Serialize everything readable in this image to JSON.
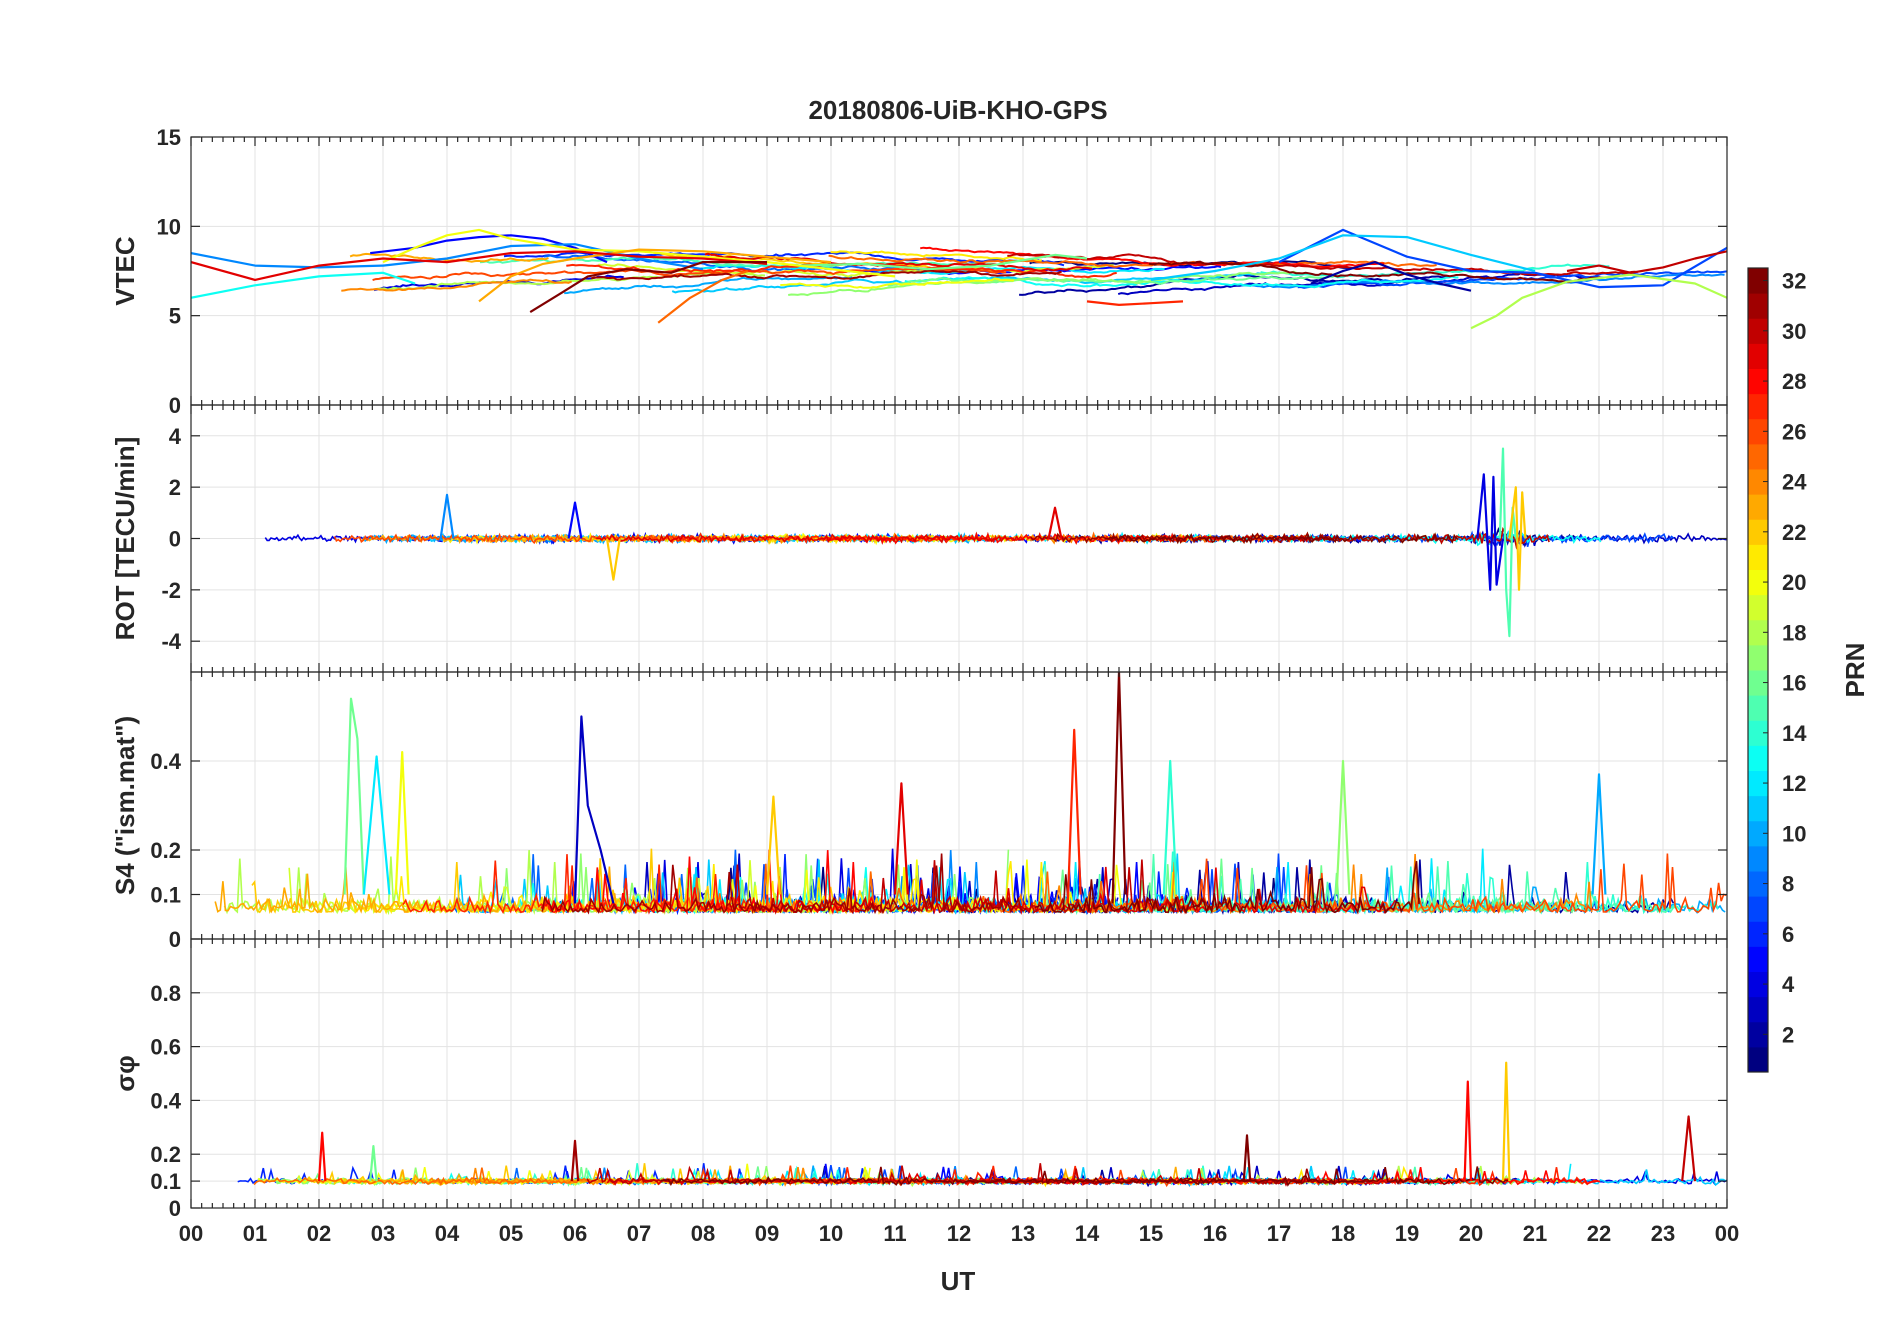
{
  "chart_data": {
    "type": "line",
    "title": "20180806-UiB-KHO-GPS",
    "xlabel": "UT",
    "x_tick_labels": [
      "00",
      "01",
      "02",
      "03",
      "04",
      "05",
      "06",
      "07",
      "08",
      "09",
      "10",
      "11",
      "12",
      "13",
      "14",
      "15",
      "16",
      "17",
      "18",
      "19",
      "20",
      "21",
      "22",
      "23",
      "00"
    ],
    "xlim": [
      0,
      24
    ],
    "grid": true,
    "panels": [
      {
        "id": "vtec",
        "ylabel": "VTEC",
        "ylim": [
          0,
          15
        ],
        "yticks": [
          0,
          5,
          10,
          15
        ],
        "ytick_labels": [
          "0",
          "5",
          "10",
          "15"
        ],
        "series": [
          {
            "prn": 2,
            "x": [
              17.5,
              18.0,
              18.5,
              19.0,
              19.5,
              20.0
            ],
            "y": [
              6.8,
              7.5,
              8.0,
              7.3,
              6.8,
              6.4
            ]
          },
          {
            "prn": 5,
            "x": [
              2.8,
              3.5,
              4.0,
              4.5,
              5.0,
              5.5,
              6.0,
              6.5
            ],
            "y": [
              8.5,
              8.8,
              9.2,
              9.4,
              9.5,
              9.3,
              8.8,
              8.0
            ]
          },
          {
            "prn": 7,
            "x": [
              17.0,
              18.0,
              19.0,
              20.0,
              21.0,
              22.0,
              23.0,
              24.0
            ],
            "y": [
              8.0,
              9.8,
              8.3,
              7.5,
              7.4,
              6.6,
              6.7,
              8.8
            ]
          },
          {
            "prn": 9,
            "x": [
              0.0,
              1.0,
              2.0,
              3.0,
              4.0,
              5.0,
              6.0,
              7.0,
              8.0
            ],
            "y": [
              8.5,
              7.8,
              7.7,
              7.8,
              8.2,
              8.9,
              9.0,
              8.2,
              7.6
            ]
          },
          {
            "prn": 11,
            "x": [
              15.0,
              16.0,
              17.0,
              18.0,
              19.0,
              20.0,
              21.0
            ],
            "y": [
              7.0,
              7.5,
              8.2,
              9.5,
              9.4,
              8.4,
              7.5
            ]
          },
          {
            "prn": 13,
            "x": [
              0.0,
              1.0,
              2.0,
              3.0,
              3.5
            ],
            "y": [
              6.0,
              6.7,
              7.2,
              7.4,
              6.8
            ]
          },
          {
            "prn": 16,
            "x": [
              9.5,
              10.5,
              11.5,
              12.5,
              13.5,
              14.0
            ],
            "y": [
              7.8,
              7.9,
              7.6,
              7.8,
              8.4,
              8.2
            ]
          },
          {
            "prn": 18,
            "x": [
              20.0,
              20.4,
              20.8,
              21.5,
              22.5,
              23.5,
              24.0
            ],
            "y": [
              4.3,
              5.0,
              6.0,
              6.9,
              7.3,
              6.8,
              6.0
            ]
          },
          {
            "prn": 20,
            "x": [
              3.0,
              3.5,
              4.0,
              4.5,
              5.0,
              6.0,
              7.0,
              8.0,
              9.0,
              10.0,
              11.0
            ],
            "y": [
              8.0,
              8.8,
              9.5,
              9.8,
              9.3,
              8.7,
              8.6,
              8.3,
              8.0,
              7.6,
              7.2
            ]
          },
          {
            "prn": 23,
            "x": [
              4.5,
              5.0,
              5.5,
              6.0,
              7.0,
              8.0,
              9.0,
              10.0
            ],
            "y": [
              5.8,
              7.2,
              7.9,
              8.2,
              8.7,
              8.6,
              8.3,
              8.0
            ]
          },
          {
            "prn": 25,
            "x": [
              7.3,
              7.8,
              8.3,
              8.7
            ],
            "y": [
              4.6,
              6.0,
              7.0,
              7.5
            ]
          },
          {
            "prn": 27,
            "x": [
              14.0,
              14.5,
              15.0,
              15.5
            ],
            "y": [
              5.8,
              5.6,
              5.7,
              5.8
            ]
          },
          {
            "prn": 29,
            "x": [
              0.0,
              1.0,
              2.0,
              3.0,
              4.0,
              5.0,
              6.0,
              7.0,
              8.0,
              9.0
            ],
            "y": [
              8.0,
              7.0,
              7.8,
              8.2,
              8.0,
              8.5,
              8.6,
              8.3,
              8.2,
              7.9
            ]
          },
          {
            "prn": 30,
            "x": [
              21.5,
              22.0,
              22.5,
              23.0,
              23.5,
              24.0
            ],
            "y": [
              7.5,
              7.8,
              7.4,
              7.7,
              8.2,
              8.6
            ]
          },
          {
            "prn": 32,
            "x": [
              5.3,
              5.8,
              6.2,
              6.8,
              7.5,
              8.0,
              9.0
            ],
            "y": [
              5.2,
              6.3,
              7.2,
              7.6,
              7.4,
              8.0,
              8.0
            ]
          }
        ]
      },
      {
        "id": "rot",
        "ylabel": "ROT [TECU/min]",
        "ylim": [
          -5.2,
          5.2
        ],
        "yticks": [
          -4,
          -2,
          0,
          2,
          4
        ],
        "ytick_labels": [
          "-4",
          "-2",
          "0",
          "2",
          "4"
        ],
        "series": [
          {
            "prn": 4,
            "x": [
              20.1,
              20.2,
              20.3,
              20.35,
              20.4,
              20.5
            ],
            "y": [
              0.0,
              2.5,
              -2.0,
              2.4,
              -1.8,
              0.0
            ]
          },
          {
            "prn": 15,
            "x": [
              20.45,
              20.5,
              20.55,
              20.6,
              20.65,
              20.7
            ],
            "y": [
              0.0,
              3.5,
              -2.0,
              -3.8,
              1.2,
              0.0
            ]
          },
          {
            "prn": 22,
            "x": [
              20.6,
              20.7,
              20.75,
              20.8,
              20.85
            ],
            "y": [
              0.0,
              2.0,
              -2.0,
              1.8,
              0.0
            ]
          },
          {
            "prn": 9,
            "x": [
              3.9,
              4.0,
              4.1
            ],
            "y": [
              0.0,
              1.7,
              0.0
            ]
          },
          {
            "prn": 5,
            "x": [
              5.9,
              6.0,
              6.1
            ],
            "y": [
              0.0,
              1.4,
              0.0
            ]
          },
          {
            "prn": 22,
            "x": [
              6.5,
              6.6,
              6.7
            ],
            "y": [
              0.0,
              -1.6,
              0.0
            ]
          },
          {
            "prn": 29,
            "x": [
              13.4,
              13.5,
              13.6
            ],
            "y": [
              0.0,
              1.2,
              0.0
            ]
          }
        ]
      },
      {
        "id": "s4",
        "ylabel": "S4 (\"ism.mat\")",
        "ylim": [
          0,
          0.6
        ],
        "yticks": [
          0,
          0.1,
          0.2,
          0.4
        ],
        "ytick_labels": [
          "0",
          "0.1",
          "0.2",
          "0.4"
        ],
        "series": [
          {
            "prn": 32,
            "x": [
              14.4,
              14.5,
              14.6
            ],
            "y": [
              0.08,
              0.6,
              0.1
            ]
          },
          {
            "prn": 3,
            "x": [
              6.0,
              6.1,
              6.2,
              6.4,
              6.6
            ],
            "y": [
              0.08,
              0.5,
              0.3,
              0.2,
              0.08
            ]
          },
          {
            "prn": 16,
            "x": [
              2.4,
              2.5,
              2.6,
              2.7
            ],
            "y": [
              0.1,
              0.54,
              0.45,
              0.1
            ]
          },
          {
            "prn": 12,
            "x": [
              2.7,
              2.9,
              3.1
            ],
            "y": [
              0.1,
              0.41,
              0.1
            ]
          },
          {
            "prn": 20,
            "x": [
              3.2,
              3.3,
              3.4
            ],
            "y": [
              0.1,
              0.42,
              0.1
            ]
          },
          {
            "prn": 27,
            "x": [
              13.7,
              13.8,
              13.9
            ],
            "y": [
              0.08,
              0.47,
              0.1
            ]
          },
          {
            "prn": 14,
            "x": [
              15.2,
              15.3,
              15.4
            ],
            "y": [
              0.1,
              0.4,
              0.1
            ]
          },
          {
            "prn": 17,
            "x": [
              17.9,
              18.0,
              18.1
            ],
            "y": [
              0.1,
              0.4,
              0.1
            ]
          },
          {
            "prn": 10,
            "x": [
              21.9,
              22.0,
              22.1
            ],
            "y": [
              0.1,
              0.37,
              0.1
            ]
          },
          {
            "prn": 29,
            "x": [
              11.0,
              11.1,
              11.2
            ],
            "y": [
              0.1,
              0.35,
              0.1
            ]
          },
          {
            "prn": 22,
            "x": [
              9.0,
              9.1,
              9.2
            ],
            "y": [
              0.1,
              0.32,
              0.1
            ]
          }
        ]
      },
      {
        "id": "sigma",
        "ylabel": "σφ",
        "ylim": [
          0,
          1
        ],
        "yticks": [
          0,
          0.1,
          0.2,
          0.4,
          0.6,
          0.8
        ],
        "ytick_labels": [
          "0",
          "0.1",
          "0.2",
          "0.4",
          "0.6",
          "0.8"
        ],
        "series": [
          {
            "prn": 22,
            "x": [
              20.5,
              20.55,
              20.6
            ],
            "y": [
              0.1,
              0.54,
              0.1
            ]
          },
          {
            "prn": 28,
            "x": [
              19.9,
              19.95,
              20.0
            ],
            "y": [
              0.1,
              0.47,
              0.1
            ]
          },
          {
            "prn": 30,
            "x": [
              23.3,
              23.4,
              23.5
            ],
            "y": [
              0.1,
              0.34,
              0.1
            ]
          },
          {
            "prn": 28,
            "x": [
              2.0,
              2.05,
              2.1
            ],
            "y": [
              0.1,
              0.28,
              0.1
            ]
          },
          {
            "prn": 32,
            "x": [
              16.45,
              16.5,
              16.55
            ],
            "y": [
              0.1,
              0.27,
              0.1
            ]
          },
          {
            "prn": 31,
            "x": [
              5.95,
              6.0,
              6.05
            ],
            "y": [
              0.1,
              0.25,
              0.1
            ]
          },
          {
            "prn": 16,
            "x": [
              2.8,
              2.85,
              2.9
            ],
            "y": [
              0.1,
              0.23,
              0.1
            ]
          }
        ]
      }
    ],
    "colorbar": {
      "label": "PRN",
      "colormap": "jet",
      "range": [
        1,
        32
      ],
      "tick_labels": [
        "2",
        "4",
        "6",
        "8",
        "10",
        "12",
        "14",
        "16",
        "18",
        "20",
        "22",
        "24",
        "26",
        "28",
        "30",
        "32"
      ]
    }
  }
}
